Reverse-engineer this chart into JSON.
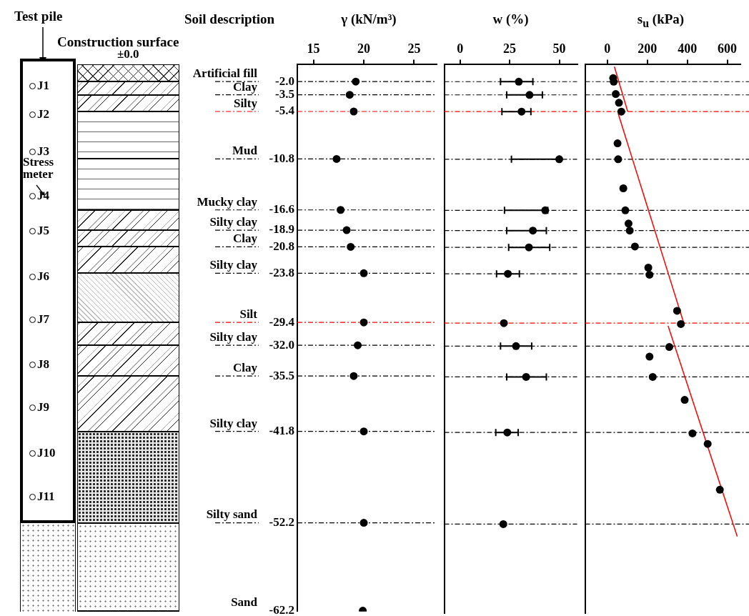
{
  "chart_data": [
    {
      "type": "other",
      "annotations": [
        "Test pile",
        "Construction surface",
        "±0.0",
        "Stress meter",
        "J1",
        "J2",
        "J3",
        "J4",
        "J5",
        "J6",
        "J7",
        "J8",
        "J9",
        "J10",
        "J11"
      ]
    },
    {
      "type": "scatter",
      "xlabel": "γ (kN/m³)",
      "ylabel": "Soil description",
      "xlim": [
        13.4,
        27.2
      ],
      "xticks": [
        15,
        20,
        25
      ],
      "ylim": [
        -62.3,
        0
      ],
      "yticks": [
        {
          "value": -2,
          "label": "-2.0"
        },
        {
          "value": -3.5,
          "label": "-3.5"
        },
        {
          "value": -5.4,
          "label": "-5.4"
        },
        {
          "value": -10.8,
          "label": "-10.8"
        },
        {
          "value": -16.6,
          "label": "-16.6"
        },
        {
          "value": -18.9,
          "label": "-18.9"
        },
        {
          "value": -20.8,
          "label": "-20.8"
        },
        {
          "value": -23.8,
          "label": "-23.8"
        },
        {
          "value": -29.4,
          "label": "-29.4"
        },
        {
          "value": -32,
          "label": "-32.0"
        },
        {
          "value": -35.5,
          "label": "-35.5"
        },
        {
          "value": -41.8,
          "label": "-41.8"
        },
        {
          "value": -52.2,
          "label": "-52.2"
        },
        {
          "value": -62.2,
          "label": "-62.2"
        }
      ],
      "marker": "circle",
      "series": [
        {
          "color": "#000000",
          "x": [
            19.2,
            18.6,
            19.0,
            17.3,
            17.7,
            18.3,
            18.7,
            20.0,
            20.0,
            19.4,
            19.0,
            20.0,
            20.0,
            19.9
          ],
          "values": [
            -2,
            -3.5,
            -5.4,
            -10.8,
            -16.6,
            -18.9,
            -20.8,
            -23.8,
            -29.4,
            -32,
            -35.5,
            -41.8,
            -52.2,
            -62.2
          ]
        }
      ],
      "ref_lines": [
        {
          "axis": "y",
          "value": -2,
          "color": "#000000",
          "line_style": "dashed"
        },
        {
          "axis": "y",
          "value": -3.5,
          "color": "#000000",
          "line_style": "dashed"
        },
        {
          "axis": "y",
          "value": -5.4,
          "color": "#ff0000",
          "line_style": "dashed"
        },
        {
          "axis": "y",
          "value": -10.8,
          "color": "#000000",
          "line_style": "dashed"
        },
        {
          "axis": "y",
          "value": -16.6,
          "color": "#000000",
          "line_style": "dashed"
        },
        {
          "axis": "y",
          "value": -18.9,
          "color": "#000000",
          "line_style": "dashed"
        },
        {
          "axis": "y",
          "value": -20.8,
          "color": "#000000",
          "line_style": "dashed"
        },
        {
          "axis": "y",
          "value": -23.8,
          "color": "#000000",
          "line_style": "dashed"
        },
        {
          "axis": "y",
          "value": -29.4,
          "color": "#ff0000",
          "line_style": "dashed"
        },
        {
          "axis": "y",
          "value": -32,
          "color": "#000000",
          "line_style": "dashed"
        },
        {
          "axis": "y",
          "value": -35.5,
          "color": "#000000",
          "line_style": "dashed"
        },
        {
          "axis": "y",
          "value": -41.8,
          "color": "#000000",
          "line_style": "dashed"
        },
        {
          "axis": "y",
          "value": -52.2,
          "color": "#000000",
          "line_style": "dashed"
        }
      ],
      "annotations": [
        "Artificial fill",
        "Clay",
        "Silty",
        "Mud",
        "Mucky clay",
        "Silty clay",
        "Clay",
        "Silty clay",
        "Silt",
        "Silty clay",
        "Clay",
        "Silty clay",
        "Silty sand",
        "Sand"
      ]
    },
    {
      "type": "scatter",
      "xlabel": "w (%)",
      "xlim": [
        -8,
        59
      ],
      "xticks": [
        0,
        25,
        50
      ],
      "ylim": [
        -62.3,
        0
      ],
      "tick_labels": "x",
      "marker": "circle",
      "series": [
        {
          "color": "#000000",
          "x": [
            29.6,
            35.0,
            31.0,
            50.0,
            42.9,
            36.7,
            34.7,
            24.1,
            22.1,
            28.2,
            33.3,
            23.8,
            21.8
          ],
          "values": [
            -2,
            -3.5,
            -5.4,
            -10.8,
            -16.6,
            -18.9,
            -20.8,
            -23.8,
            -29.4,
            -32,
            -35.5,
            -41.8,
            -52.2
          ],
          "xerrors": [
            [
              20.4,
              36.7
            ],
            [
              23.5,
              41.5
            ],
            [
              21.1,
              35.7
            ],
            [
              25.9,
              50.0
            ],
            [
              22.4,
              44.2
            ],
            [
              23.5,
              43.5
            ],
            [
              24.5,
              45.2
            ],
            [
              18.4,
              29.9
            ],
            null,
            [
              20.4,
              36.1
            ],
            [
              23.5,
              43.5
            ],
            [
              18.0,
              29.3
            ],
            null
          ]
        }
      ],
      "ref_lines": [
        {
          "axis": "y",
          "value": -2,
          "color": "#000000",
          "line_style": "dashed"
        },
        {
          "axis": "y",
          "value": -3.5,
          "color": "#000000",
          "line_style": "dashed"
        },
        {
          "axis": "y",
          "value": -5.4,
          "color": "#ff0000",
          "line_style": "dashed"
        },
        {
          "axis": "y",
          "value": -10.8,
          "color": "#000000",
          "line_style": "dashed"
        },
        {
          "axis": "y",
          "value": -16.6,
          "color": "#000000",
          "line_style": "dashed"
        },
        {
          "axis": "y",
          "value": -18.9,
          "color": "#000000",
          "line_style": "dashed"
        },
        {
          "axis": "y",
          "value": -20.8,
          "color": "#000000",
          "line_style": "dashed"
        },
        {
          "axis": "y",
          "value": -23.8,
          "color": "#000000",
          "line_style": "dashed"
        },
        {
          "axis": "y",
          "value": -29.4,
          "color": "#ff0000",
          "line_style": "dashed"
        },
        {
          "axis": "y",
          "value": -32,
          "color": "#000000",
          "line_style": "dashed"
        },
        {
          "axis": "y",
          "value": -35.5,
          "color": "#000000",
          "line_style": "dashed"
        },
        {
          "axis": "y",
          "value": -41.8,
          "color": "#000000",
          "line_style": "dashed"
        },
        {
          "axis": "y",
          "value": -52.2,
          "color": "#000000",
          "line_style": "dashed"
        }
      ]
    },
    {
      "type": "scatter",
      "xlabel": "s$_{u}$ (kPa)",
      "xlim": [
        -112,
        666
      ],
      "xticks": [
        0,
        200,
        400,
        600
      ],
      "ylim": [
        -62.3,
        0
      ],
      "tick_labels": "x",
      "marker": "circle",
      "series": [
        {
          "color": "#000000",
          "x": [
            29,
            32,
            42,
            58,
            70,
            51,
            54,
            80,
            90,
            106,
            112,
            138,
            205,
            211,
            349,
            368,
            310,
            211,
            227,
            387,
            426,
            502,
            563
          ],
          "values": [
            -1.6,
            -2.0,
            -3.4,
            -4.4,
            -5.4,
            -9.0,
            -10.8,
            -14.1,
            -16.6,
            -18.1,
            -18.9,
            -20.7,
            -23.1,
            -23.9,
            -28.0,
            -29.5,
            -32.1,
            -33.2,
            -35.5,
            -38.1,
            -41.9,
            -43.1,
            -48.3
          ]
        },
        {
          "type": "line",
          "marker": "none",
          "color": "#ff0000",
          "x": [
            35,
            102
          ],
          "values": [
            -0.3,
            -5.4
          ]
        },
        {
          "type": "line",
          "marker": "none",
          "color": "#ff0000",
          "x": [
            54,
            384
          ],
          "values": [
            -5.6,
            -29.5
          ]
        },
        {
          "type": "line",
          "marker": "none",
          "color": "#ff0000",
          "x": [
            304,
            650
          ],
          "values": [
            -29.7,
            -53.6
          ]
        }
      ],
      "ref_lines": [
        {
          "axis": "y",
          "value": -2,
          "color": "#000000",
          "line_style": "dashed"
        },
        {
          "axis": "y",
          "value": -3.5,
          "color": "#000000",
          "line_style": "dashed"
        },
        {
          "axis": "y",
          "value": -5.4,
          "color": "#ff0000",
          "line_style": "dashed"
        },
        {
          "axis": "y",
          "value": -10.8,
          "color": "#000000",
          "line_style": "dashed"
        },
        {
          "axis": "y",
          "value": -16.6,
          "color": "#000000",
          "line_style": "dashed"
        },
        {
          "axis": "y",
          "value": -18.9,
          "color": "#000000",
          "line_style": "dashed"
        },
        {
          "axis": "y",
          "value": -20.8,
          "color": "#000000",
          "line_style": "dashed"
        },
        {
          "axis": "y",
          "value": -23.8,
          "color": "#000000",
          "line_style": "dashed"
        },
        {
          "axis": "y",
          "value": -29.4,
          "color": "#ff0000",
          "line_style": "dashed"
        },
        {
          "axis": "y",
          "value": -32,
          "color": "#000000",
          "line_style": "dashed"
        },
        {
          "axis": "y",
          "value": -35.5,
          "color": "#000000",
          "line_style": "dashed"
        },
        {
          "axis": "y",
          "value": -41.8,
          "color": "#000000",
          "line_style": "dashed"
        },
        {
          "axis": "y",
          "value": -52.2,
          "color": "#000000",
          "line_style": "dashed"
        }
      ]
    }
  ]
}
